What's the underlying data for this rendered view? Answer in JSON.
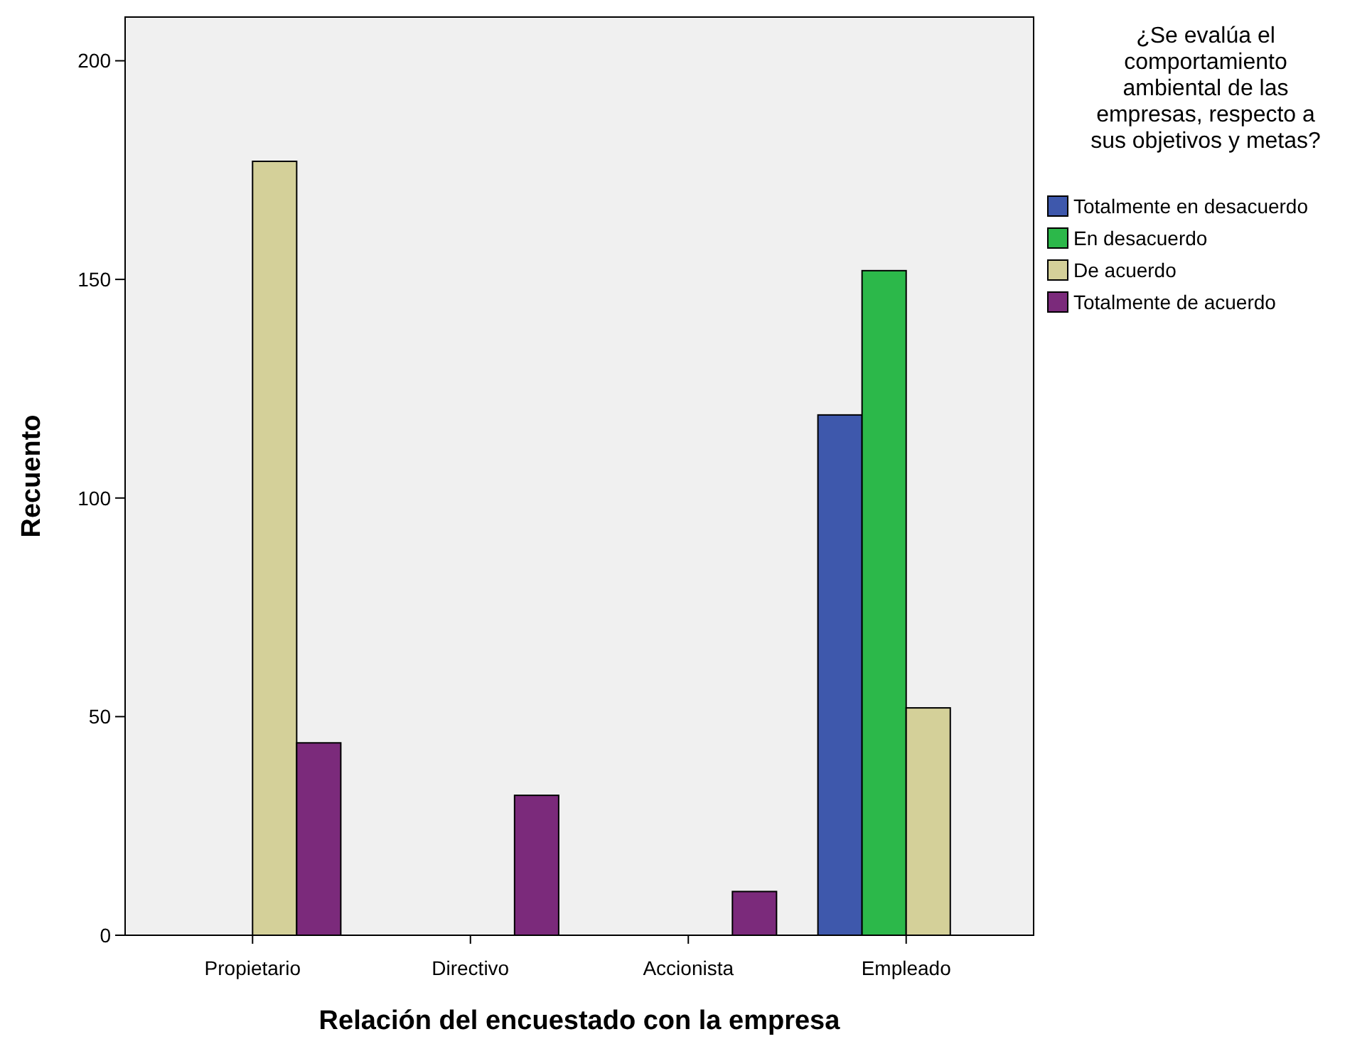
{
  "chart_data": {
    "type": "bar",
    "xlabel": "Relación del encuestado con la empresa",
    "ylabel": "Recuento",
    "legend_title": "¿Se evalúa el comportamiento ambiental de las empresas, respecto a sus objetivos y metas?",
    "categories": [
      "Propietario",
      "Directivo",
      "Accionista",
      "Empleado"
    ],
    "series": [
      {
        "name": "Totalmente en desacuerdo",
        "color": "#3e58ac",
        "values": [
          null,
          null,
          null,
          119
        ]
      },
      {
        "name": "En desacuerdo",
        "color": "#2cb84a",
        "values": [
          null,
          null,
          null,
          152
        ]
      },
      {
        "name": "De acuerdo",
        "color": "#d4d099",
        "values": [
          177,
          null,
          null,
          52
        ]
      },
      {
        "name": "Totalmente de acuerdo",
        "color": "#7b2a7b",
        "values": [
          44,
          32,
          10,
          null
        ]
      }
    ],
    "ylim": [
      0,
      210
    ],
    "yticks": [
      0,
      50,
      100,
      150,
      200
    ],
    "grid": false,
    "legend": "right"
  }
}
